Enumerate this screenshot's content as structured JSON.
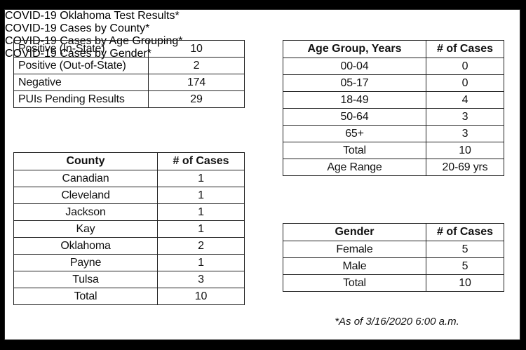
{
  "test_results": {
    "title": "COVID-19 Oklahoma Test Results*",
    "rows": [
      [
        "Positive (In-State)",
        10
      ],
      [
        "Positive (Out-of-State)",
        2
      ],
      [
        "Negative",
        174
      ],
      [
        "PUIs Pending Results",
        29
      ]
    ]
  },
  "cases_by_county": {
    "title": "COVID-19 Cases by County*",
    "header": [
      "County",
      "# of Cases"
    ],
    "rows": [
      [
        "Canadian",
        1
      ],
      [
        "Cleveland",
        1
      ],
      [
        "Jackson",
        1
      ],
      [
        "Kay",
        1
      ],
      [
        "Oklahoma",
        2
      ],
      [
        "Payne",
        1
      ],
      [
        "Tulsa",
        3
      ],
      [
        "Total",
        10
      ]
    ]
  },
  "cases_by_age": {
    "title": "COVID-19 Cases by Age Grouping*",
    "header": [
      "Age Group, Years",
      "# of Cases"
    ],
    "rows": [
      [
        "00-04",
        0
      ],
      [
        "05-17",
        0
      ],
      [
        "18-49",
        4
      ],
      [
        "50-64",
        3
      ],
      [
        "65+",
        3
      ],
      [
        "Total",
        10
      ],
      [
        "Age Range",
        "20-69 yrs"
      ]
    ]
  },
  "cases_by_gender": {
    "title": "COVID-19 Cases by Gender*",
    "header": [
      "Gender",
      "# of Cases"
    ],
    "rows": [
      [
        "Female",
        5
      ],
      [
        "Male",
        5
      ],
      [
        "Total",
        10
      ]
    ]
  },
  "footnote": "*As of 3/16/2020 6:00 a.m."
}
